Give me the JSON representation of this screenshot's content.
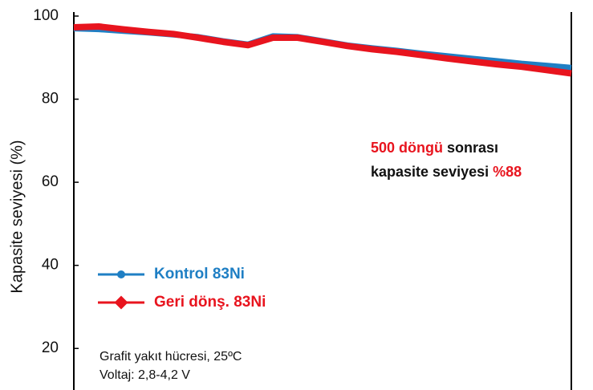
{
  "chart_data": {
    "type": "line",
    "y_label": "Kapasite seviyesi (%)",
    "x": [
      0,
      25,
      50,
      75,
      100,
      125,
      150,
      175,
      200,
      225,
      250,
      275,
      300,
      325,
      350,
      375,
      400,
      425,
      450,
      475,
      500
    ],
    "xlim": [
      0,
      500
    ],
    "ylim": [
      10,
      101
    ],
    "yticks": [
      20,
      40,
      60,
      80,
      100
    ],
    "series": [
      {
        "name": "Kontrol 83Ni",
        "color": "#1f7fc4",
        "values": [
          97,
          96.8,
          96.4,
          96,
          95.5,
          95,
          94,
          93.2,
          95.2,
          95,
          94,
          93,
          92.3,
          91.7,
          91,
          90.4,
          89.8,
          89.2,
          88.6,
          88.1,
          87.6
        ]
      },
      {
        "name": "Geri dönş. 83Ni",
        "color": "#e8141e",
        "values": [
          97.3,
          97.5,
          96.8,
          96.2,
          95.7,
          94.8,
          93.8,
          93,
          94.8,
          94.8,
          93.8,
          92.8,
          92,
          91.4,
          90.6,
          89.8,
          89.1,
          88.4,
          87.8,
          87,
          86.2
        ]
      }
    ],
    "annotations": [
      [
        {
          "text": "500 döngü",
          "color": "#e8141e"
        },
        {
          "text": "sonrası",
          "color": "#111111"
        }
      ],
      [
        {
          "text": "kapasite seviyesi",
          "color": "#111111"
        },
        {
          "text": "%88",
          "color": "#e8141e"
        }
      ]
    ],
    "notes": [
      "Grafit yakıt hücresi, 25ºC",
      "Voltaj: 2,8‑4,2 V"
    ]
  }
}
